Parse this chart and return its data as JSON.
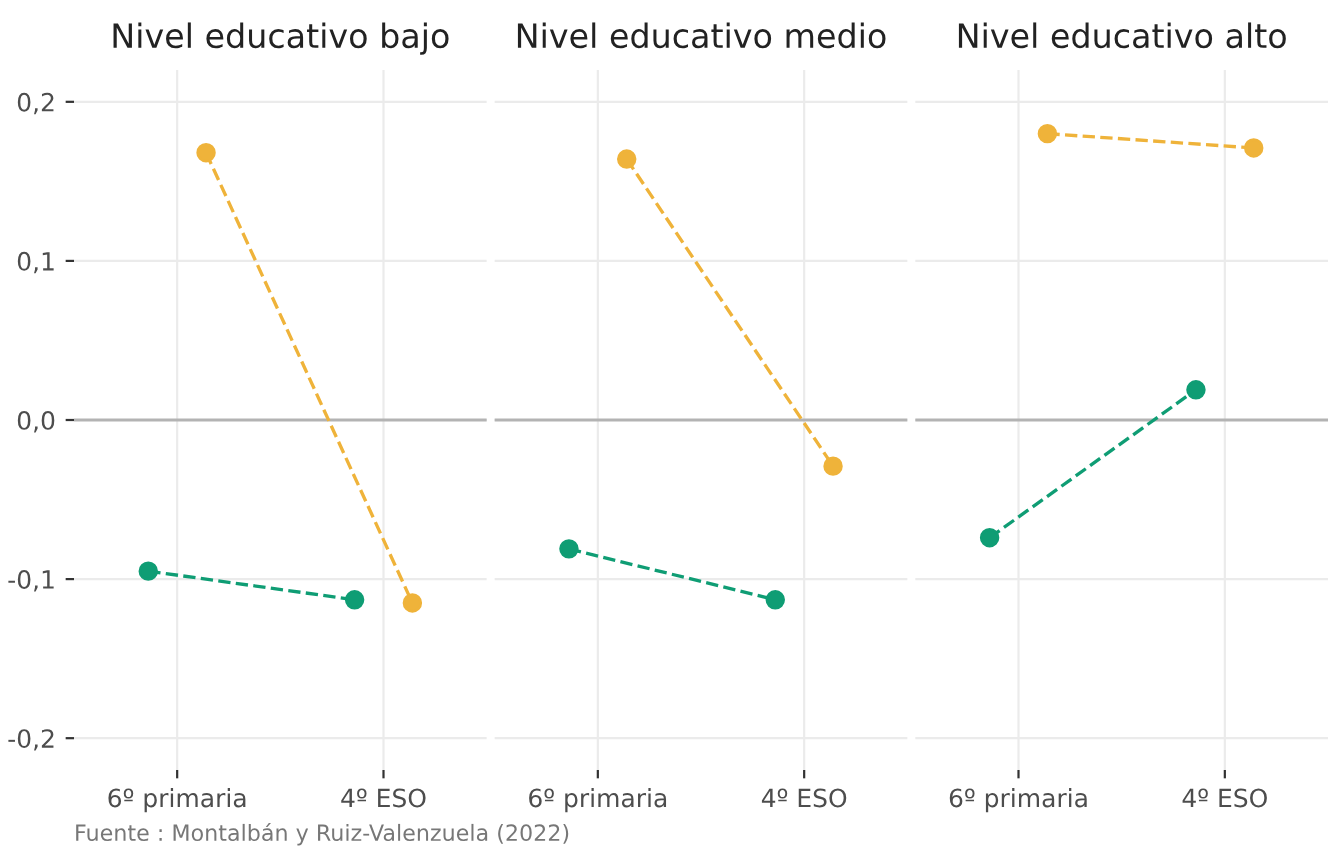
{
  "chart_data": [
    {
      "type": "line",
      "title": "Nivel educativo bajo",
      "categories": [
        "6º primaria",
        "4º ESO"
      ],
      "series": [
        {
          "color": "#0f9d74",
          "values": [
            -0.095,
            -0.113
          ]
        },
        {
          "color": "#efb33a",
          "values": [
            0.168,
            -0.115
          ]
        }
      ],
      "ylim": [
        -0.22,
        0.22
      ],
      "yticks": [
        {
          "value": -0.2,
          "label": "-0,2"
        },
        {
          "value": -0.1,
          "label": "-0,1"
        },
        {
          "value": 0,
          "label": "0,0"
        },
        {
          "value": 0.1,
          "label": "0,1"
        },
        {
          "value": 0.2,
          "label": "0,2"
        }
      ],
      "ref_lines": [
        {
          "axis": "y",
          "value": 0,
          "color": "#b3b3b3"
        }
      ],
      "grid": true,
      "marker": "circle",
      "line_style": "dashed",
      "annotations": [
        "Fuente : Montalbán y Ruiz-Valenzuela (2022)"
      ]
    },
    {
      "type": "line",
      "title": "Nivel educativo medio",
      "categories": [
        "6º primaria",
        "4º ESO"
      ],
      "series": [
        {
          "color": "#0f9d74",
          "values": [
            -0.081,
            -0.113
          ]
        },
        {
          "color": "#efb33a",
          "values": [
            0.164,
            -0.029
          ]
        }
      ],
      "ylim": [
        -0.22,
        0.22
      ],
      "yticks": [
        {
          "value": -0.2,
          "label": null
        },
        {
          "value": -0.1,
          "label": null
        },
        {
          "value": 0,
          "label": null
        },
        {
          "value": 0.1,
          "label": null
        },
        {
          "value": 0.2,
          "label": null
        }
      ],
      "ref_lines": [
        {
          "axis": "y",
          "value": 0,
          "color": "#b3b3b3"
        }
      ],
      "grid": true,
      "marker": "circle",
      "line_style": "dashed",
      "tick_labels": "x"
    },
    {
      "type": "line",
      "title": "Nivel educativo alto",
      "categories": [
        "6º primaria",
        "4º ESO"
      ],
      "series": [
        {
          "color": "#0f9d74",
          "values": [
            -0.074,
            0.019
          ]
        },
        {
          "color": "#efb33a",
          "values": [
            0.18,
            0.171
          ]
        }
      ],
      "ylim": [
        -0.22,
        0.22
      ],
      "yticks": [
        {
          "value": -0.2,
          "label": null
        },
        {
          "value": -0.1,
          "label": null
        },
        {
          "value": 0,
          "label": null
        },
        {
          "value": 0.1,
          "label": null
        },
        {
          "value": 0.2,
          "label": null
        }
      ],
      "ref_lines": [
        {
          "axis": "y",
          "value": 0,
          "color": "#b3b3b3"
        }
      ],
      "grid": true,
      "marker": "circle",
      "line_style": "dashed",
      "tick_labels": "x"
    }
  ]
}
